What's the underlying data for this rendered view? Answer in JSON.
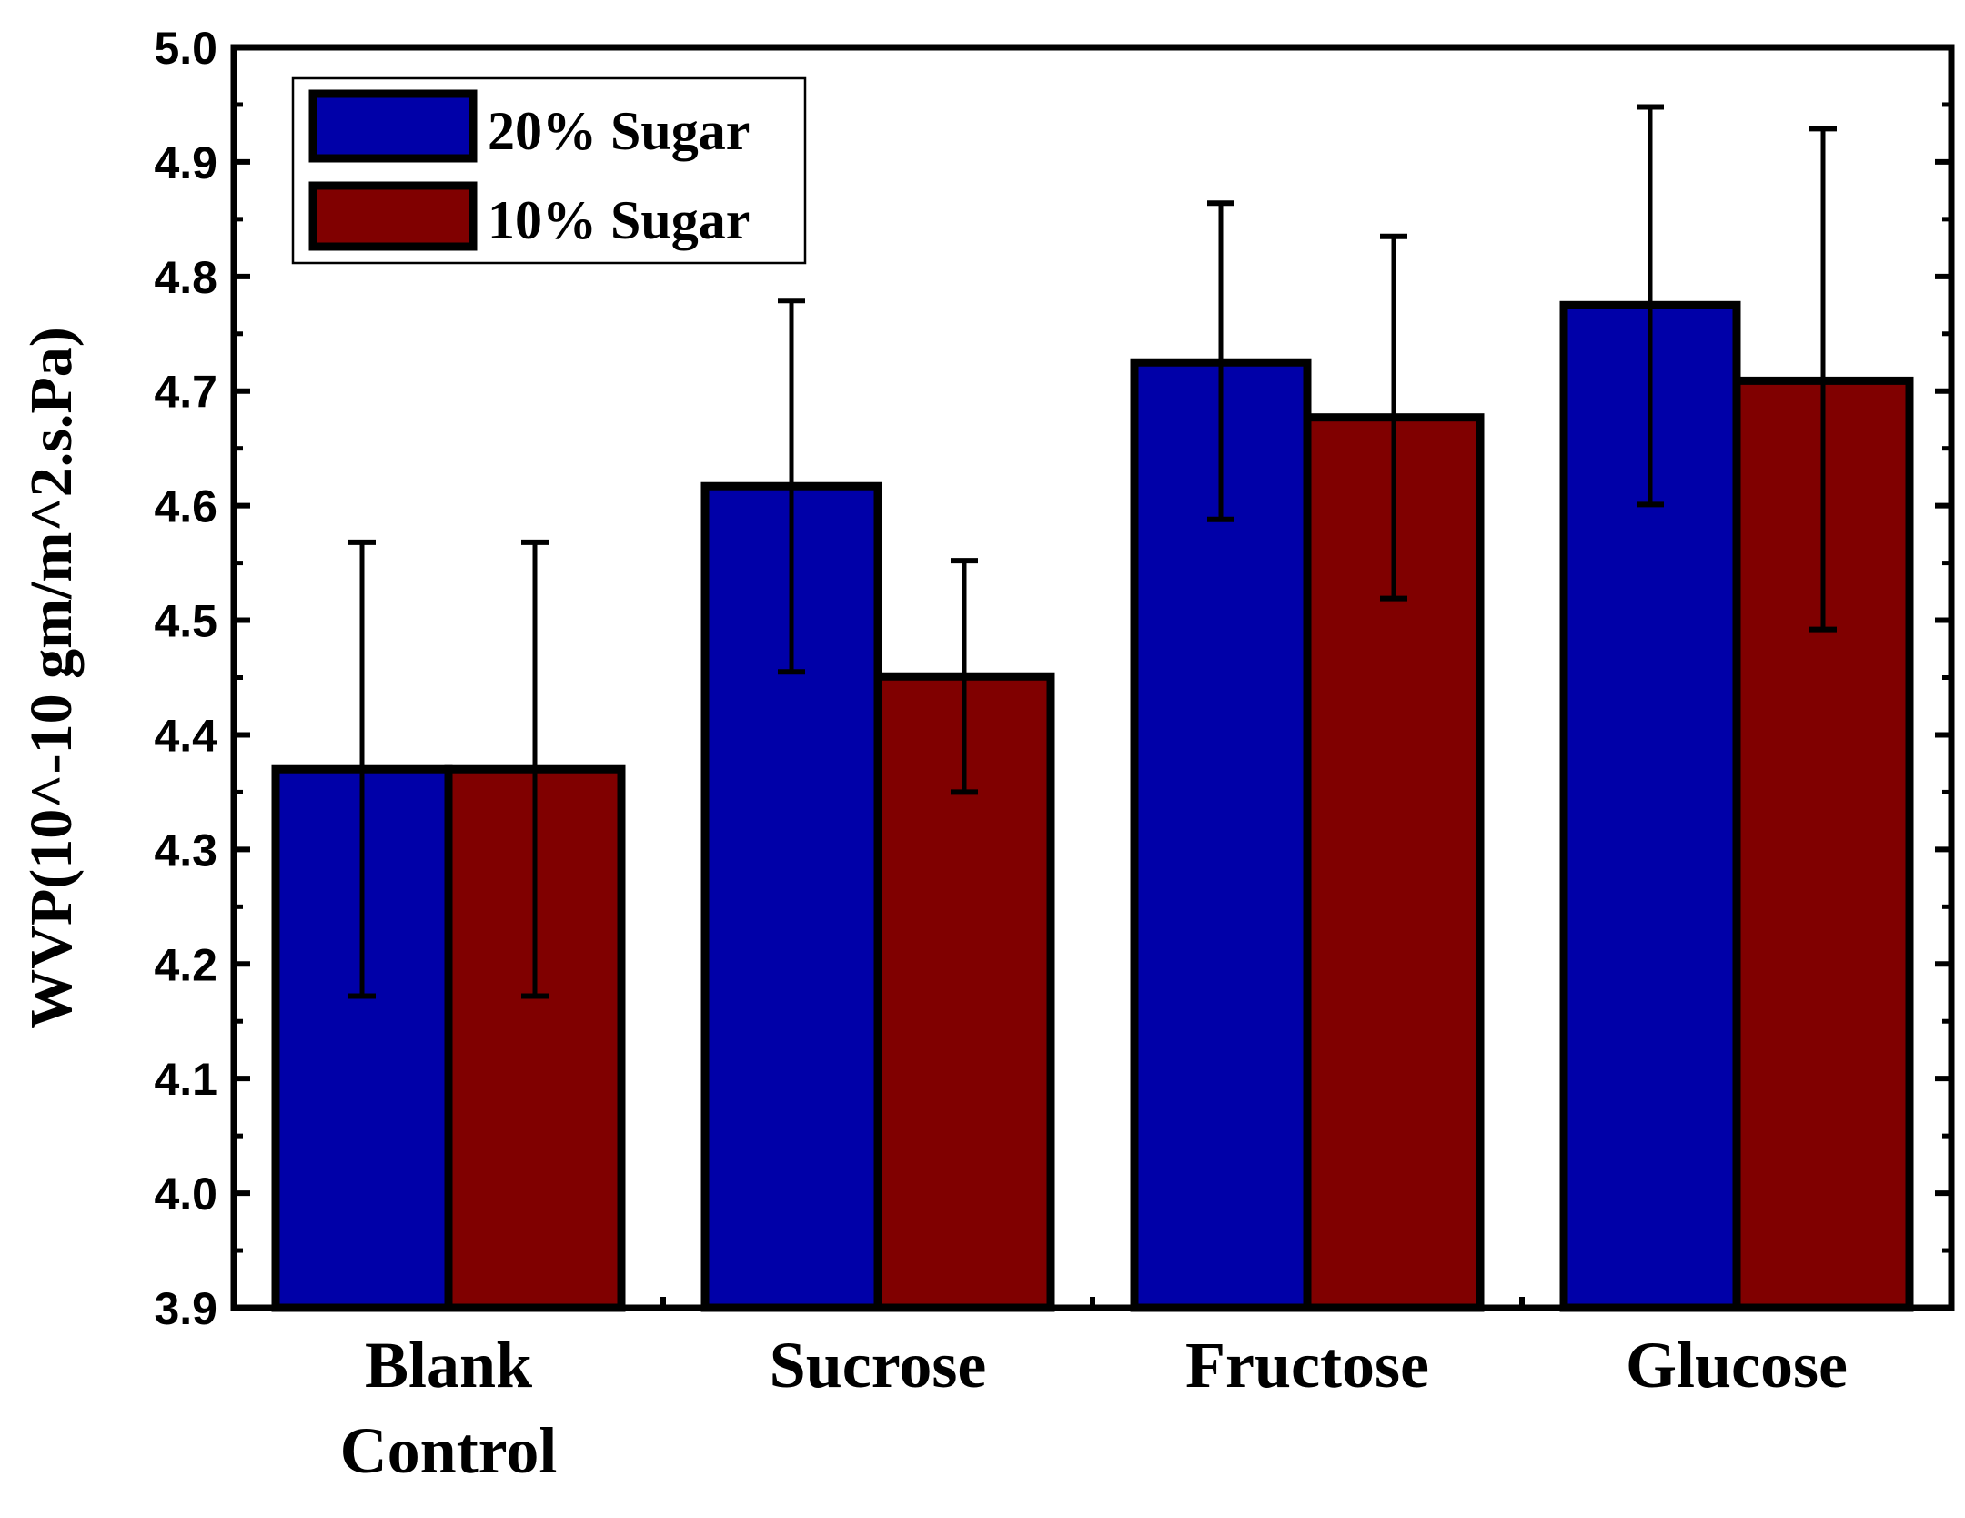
{
  "chart_data": {
    "type": "bar",
    "categories": [
      [
        "Blank",
        "Control"
      ],
      [
        "Sucrose"
      ],
      [
        "Fructose"
      ],
      [
        "Glucose"
      ]
    ],
    "series": [
      {
        "name": "20% Sugar",
        "color": "#0000A8",
        "values": [
          4.37,
          4.617,
          4.725,
          4.775
        ],
        "error_low": [
          4.172,
          4.455,
          4.588,
          4.601
        ],
        "error_high": [
          4.568,
          4.779,
          4.864,
          4.948
        ]
      },
      {
        "name": "10% Sugar",
        "color": "#800000",
        "values": [
          4.37,
          4.451,
          4.677,
          4.709
        ],
        "error_low": [
          4.172,
          4.35,
          4.519,
          4.492
        ],
        "error_high": [
          4.568,
          4.552,
          4.835,
          4.929
        ]
      }
    ],
    "ylabel": "WVP(10^-10 gm/m^2.s.Pa)",
    "xlabel": "",
    "ylim": [
      3.9,
      5.0
    ],
    "yticks": [
      "3.9",
      "4.0",
      "4.1",
      "4.2",
      "4.3",
      "4.4",
      "4.5",
      "4.6",
      "4.7",
      "4.8",
      "4.9",
      "5.0"
    ],
    "grid": false,
    "legend_position": "top-left"
  }
}
